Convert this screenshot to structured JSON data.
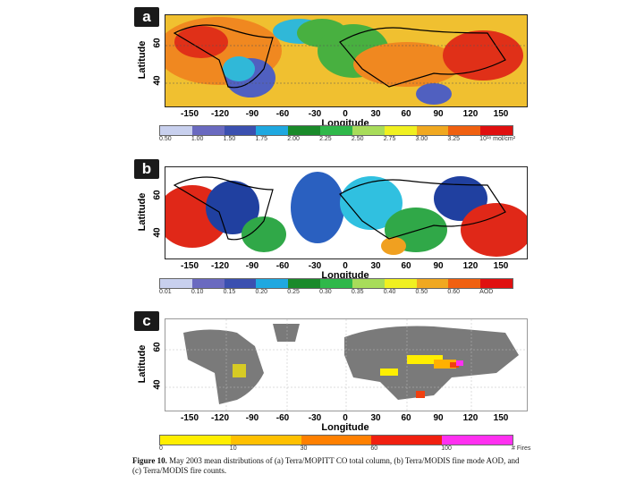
{
  "panels": [
    {
      "letter": "a",
      "ylabel": "Latitude",
      "xlabel": "Longitude",
      "yticks": [
        "60",
        "40"
      ],
      "xticks": [
        "-150",
        "-120",
        "-90",
        "-60",
        "-30",
        "0",
        "30",
        "60",
        "90",
        "120",
        "150"
      ],
      "colorbar": {
        "labels": [
          "0.50",
          "1.00",
          "1.50",
          "1.75",
          "2.00",
          "2.25",
          "2.50",
          "2.75",
          "3.00",
          "3.25"
        ],
        "unit": "10¹⁸ mol/cm²",
        "colors": [
          "#c8d0ee",
          "#6a6ac0",
          "#3b50b0",
          "#1fa8e0",
          "#1a8a2a",
          "#2fb84a",
          "#a8dc5a",
          "#f0f020",
          "#f0a820",
          "#f06010",
          "#e01010"
        ]
      },
      "map_colors": {
        "base": "#f0c030",
        "green": "#48b040",
        "cyan": "#30b8d8",
        "blue": "#5060c0",
        "red": "#e03018",
        "orange": "#f08820"
      }
    },
    {
      "letter": "b",
      "ylabel": "Latitude",
      "xlabel": "Longitude",
      "yticks": [
        "60",
        "40"
      ],
      "xticks": [
        "-150",
        "-120",
        "-90",
        "-60",
        "-30",
        "0",
        "30",
        "60",
        "90",
        "120",
        "150"
      ],
      "colorbar": {
        "labels": [
          "0.01",
          "0.10",
          "0.15",
          "0.20",
          "0.25",
          "0.30",
          "0.35",
          "0.40",
          "0.50",
          "0.60"
        ],
        "unit": "AOD",
        "colors": [
          "#c8d0ee",
          "#6a6ac0",
          "#3b50b0",
          "#1fa8e0",
          "#1a8a2a",
          "#2fb84a",
          "#a8dc5a",
          "#f0f020",
          "#f0a820",
          "#f06010",
          "#e01010"
        ]
      },
      "map_colors": {
        "base": "#2a60c0",
        "green": "#30a848",
        "cyan": "#30c0e0",
        "blue": "#2040a0",
        "red": "#e02818",
        "orange": "#f0a020"
      }
    },
    {
      "letter": "c",
      "ylabel": "Latitude",
      "xlabel": "Longitude",
      "yticks": [
        "60",
        "40"
      ],
      "xticks": [
        "-150",
        "-120",
        "-90",
        "-60",
        "-30",
        "0",
        "30",
        "60",
        "90",
        "120",
        "150"
      ],
      "colorbar": {
        "labels": [
          "0",
          "10",
          "30",
          "60",
          "100"
        ],
        "unit": "# Fires",
        "colors": [
          "#ffee00",
          "#ffc000",
          "#ff8000",
          "#f02010",
          "#ff30f0"
        ]
      },
      "map_colors": {
        "land": "#7a7a7a",
        "fire1": "#ffee00",
        "fire2": "#ffb000",
        "fire3": "#f04010",
        "fire4": "#ff30f0"
      }
    }
  ],
  "caption": {
    "label": "Figure 10.",
    "text": "May 2003 mean distributions of (a) Terra/MOPITT CO total column, (b) Terra/MODIS fine mode AOD, and (c) Terra/MODIS fire counts."
  }
}
